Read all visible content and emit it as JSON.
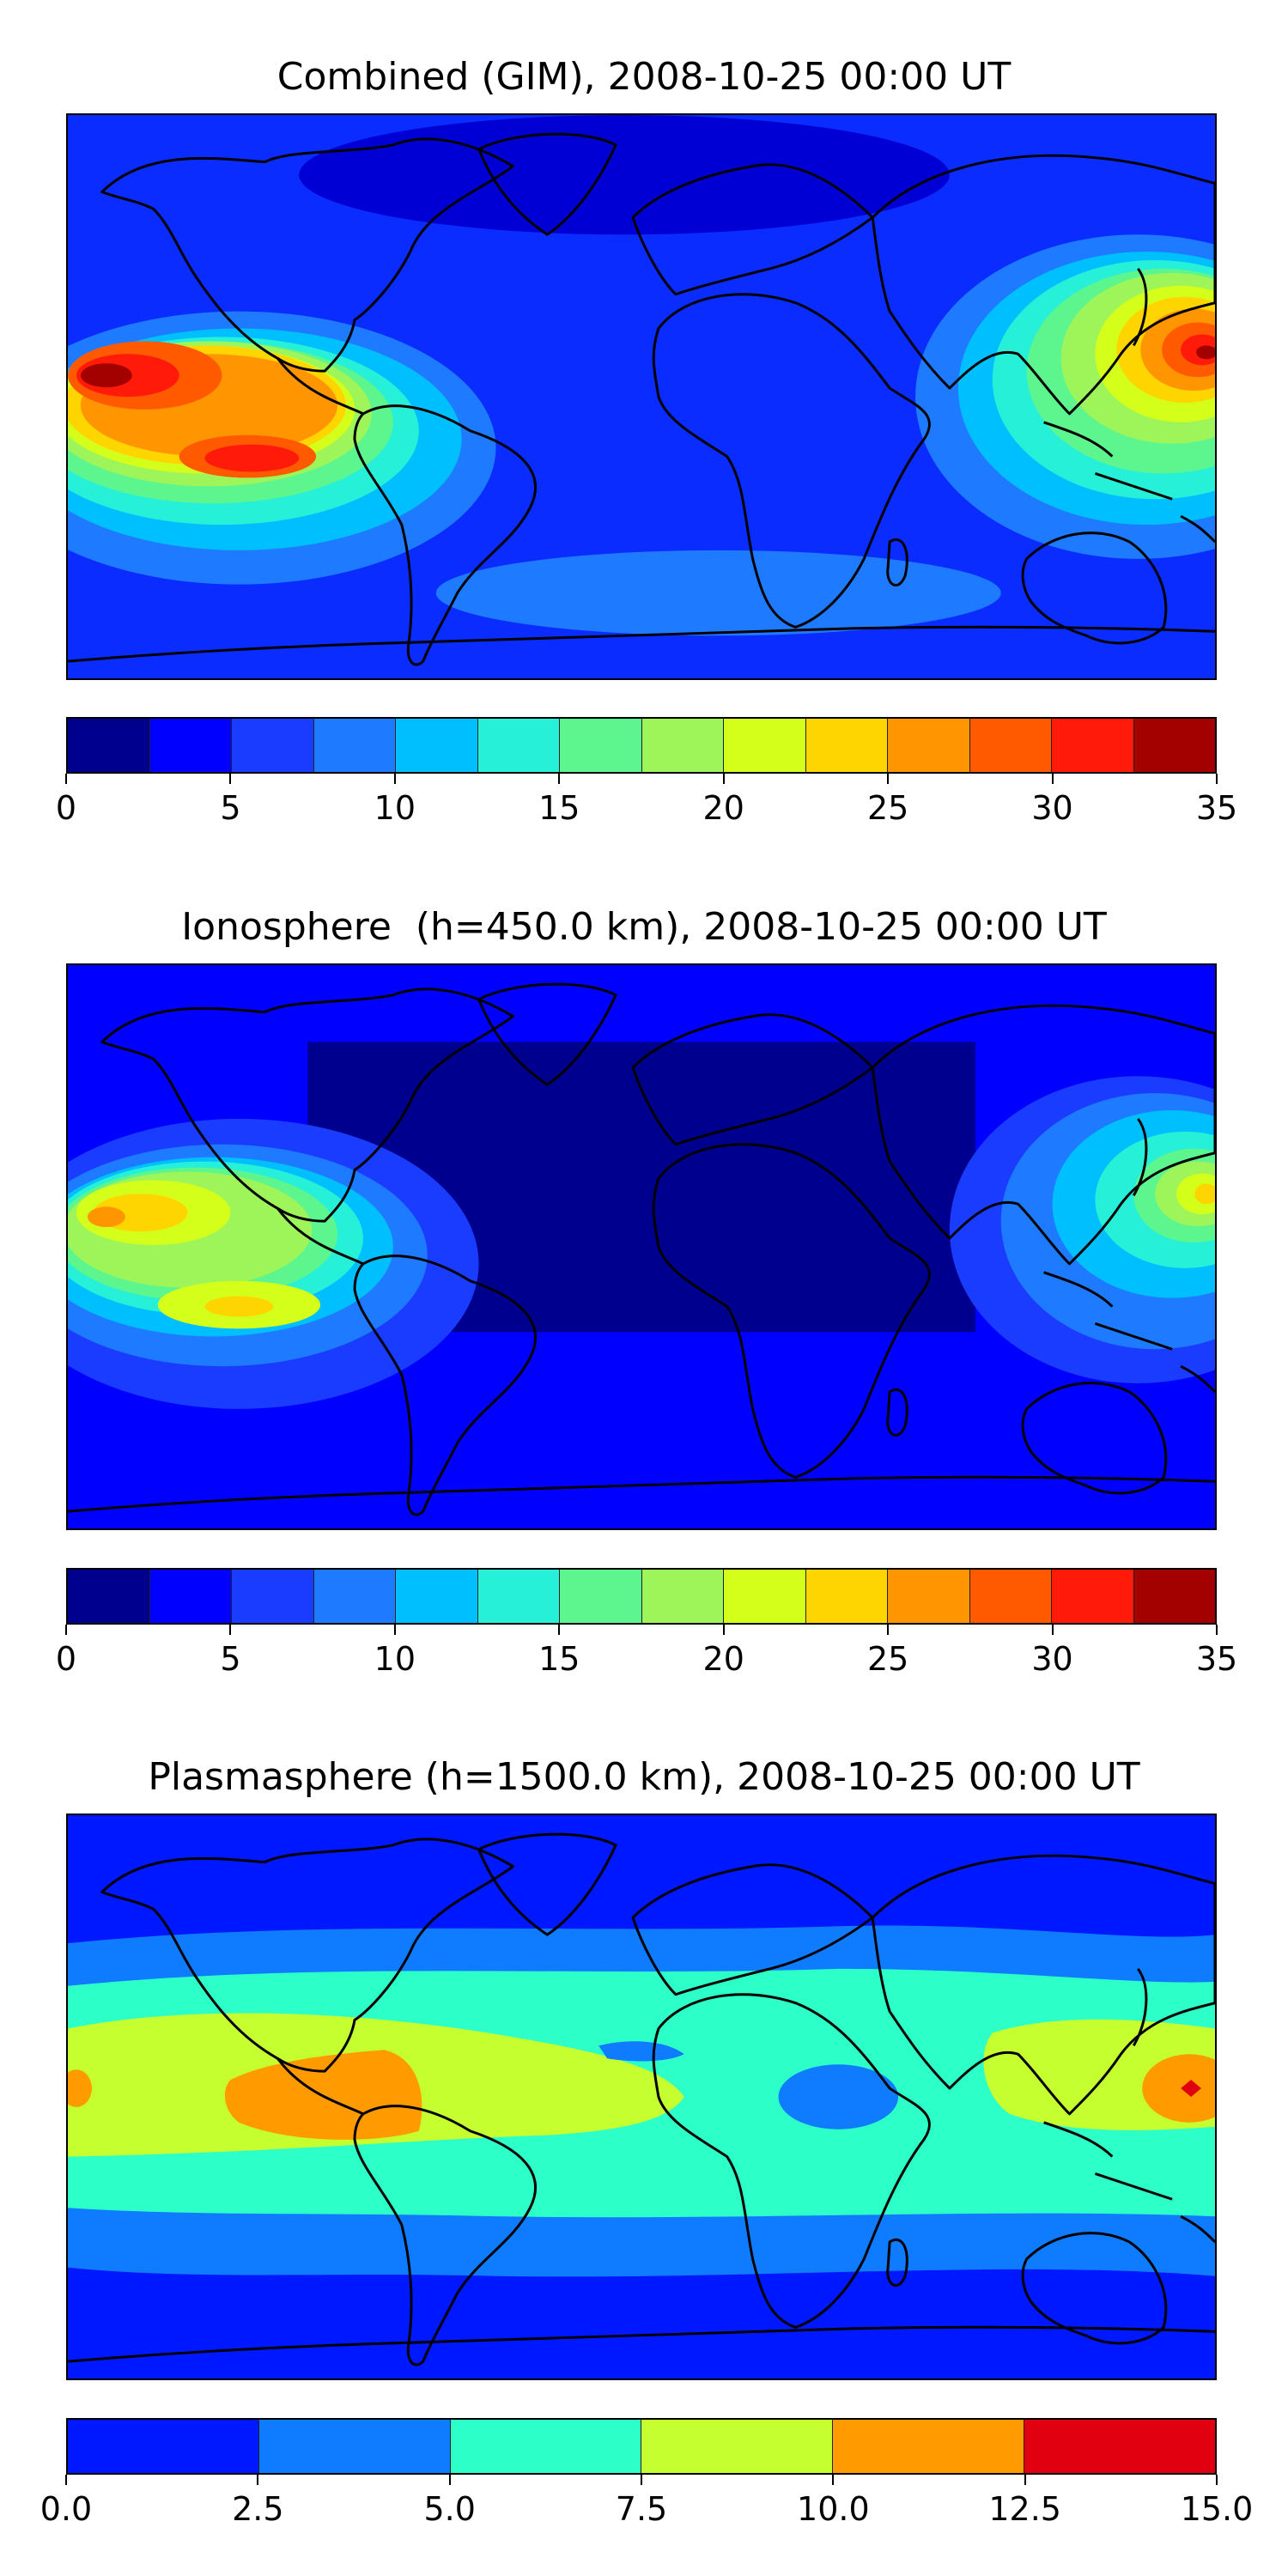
{
  "panels": [
    {
      "title": "Combined (GIM), 2008-10-25 00:00 UT",
      "colorbar": {
        "ticks": [
          "0",
          "5",
          "10",
          "15",
          "20",
          "25",
          "30",
          "35"
        ],
        "colors": [
          "#00008f",
          "#0000ff",
          "#1a3cff",
          "#1e7bff",
          "#00bfff",
          "#26f0d8",
          "#5cf58e",
          "#9ef55a",
          "#d4ff1a",
          "#ffd500",
          "#ff9500",
          "#ff5a00",
          "#ff1a0a",
          "#a30000"
        ]
      }
    },
    {
      "title": "Ionosphere  (h=450.0 km), 2008-10-25 00:00 UT",
      "colorbar": {
        "ticks": [
          "0",
          "5",
          "10",
          "15",
          "20",
          "25",
          "30",
          "35"
        ],
        "colors": [
          "#00008f",
          "#0000ff",
          "#1a3cff",
          "#1e7bff",
          "#00bfff",
          "#26f0d8",
          "#5cf58e",
          "#9ef55a",
          "#d4ff1a",
          "#ffd500",
          "#ff9500",
          "#ff5a00",
          "#ff1a0a",
          "#a30000"
        ]
      }
    },
    {
      "title": "Plasmasphere (h=1500.0 km), 2008-10-25 00:00 UT",
      "colorbar": {
        "ticks": [
          "0.0",
          "2.5",
          "5.0",
          "7.5",
          "10.0",
          "12.5",
          "15.0"
        ],
        "colors": [
          "#0018ff",
          "#0f7bff",
          "#2dffc8",
          "#c5ff30",
          "#ff9a00",
          "#e00010"
        ]
      }
    }
  ]
}
